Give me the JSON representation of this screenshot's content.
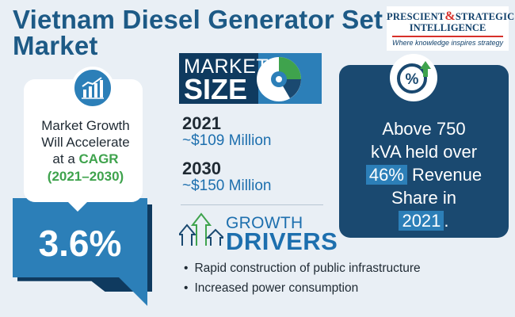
{
  "header": {
    "title": "Vietnam Diesel Generator Set Market"
  },
  "logo": {
    "line1_a": "PRESCIENT",
    "amp": "&",
    "line1_b": "STRATEGIC",
    "line2": "INTELLIGENCE",
    "tagline": "Where knowledge inspires strategy"
  },
  "growth": {
    "text_line1": "Market Growth",
    "text_line2": "Will Accelerate",
    "text_line3_prefix": "at a",
    "cagr": "CAGR",
    "years": "(2021–2030)",
    "value": "3.6%",
    "icon": "bar-chart-growth-icon"
  },
  "market_size": {
    "label_line1": "MARKET",
    "label_line2": "SIZE",
    "icon": "pie-chart-icon",
    "entries": [
      {
        "year": "2021",
        "value": "~$109 Million"
      },
      {
        "year": "2030",
        "value": "~$150 Million"
      }
    ]
  },
  "share": {
    "icon": "percent-up-icon",
    "line1": "Above 750",
    "line2": "kVA held over",
    "pct": "46%",
    "line3_rest": "Revenue",
    "line4": "Share in",
    "year": "2021",
    "period": "."
  },
  "drivers": {
    "icon": "growth-arrows-icon",
    "title_line1": "GROWTH",
    "title_line2": "DRIVERS",
    "items": [
      "Rapid construction of public infrastructure",
      "Increased power consumption"
    ]
  },
  "colors": {
    "dark_blue": "#1a4970",
    "mid_blue": "#2c7fb8",
    "green": "#3fa34d",
    "red": "#d7302a"
  }
}
